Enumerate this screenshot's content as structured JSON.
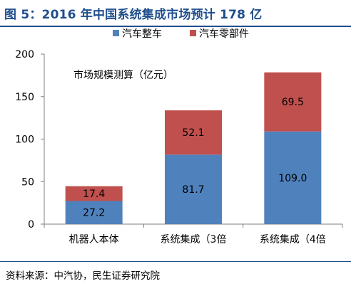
{
  "header": {
    "title": "图 5：2016 年中国系统集成市场预计 178 亿"
  },
  "footer": {
    "source": "资料来源：中汽协，民生证券研究院"
  },
  "chart_data": {
    "type": "bar",
    "stacked": true,
    "categories": [
      "机器人本体",
      "系统集成（3倍",
      "系统集成（4倍"
    ],
    "series": [
      {
        "name": "汽车整车",
        "values": [
          27.2,
          81.7,
          109.0
        ],
        "labels": [
          "27.2",
          "81.7",
          "109.0"
        ],
        "color": "#4f81bd"
      },
      {
        "name": "汽车零部件",
        "values": [
          17.4,
          52.1,
          69.5
        ],
        "labels": [
          "17.4",
          "52.1",
          "69.5"
        ],
        "color": "#c0504d"
      }
    ],
    "annotation": "市场规模测算（亿元）",
    "ylim": [
      0,
      200
    ],
    "yticks": [
      0,
      50,
      100,
      150,
      200
    ],
    "legend_position": "top-right",
    "grid": false
  }
}
